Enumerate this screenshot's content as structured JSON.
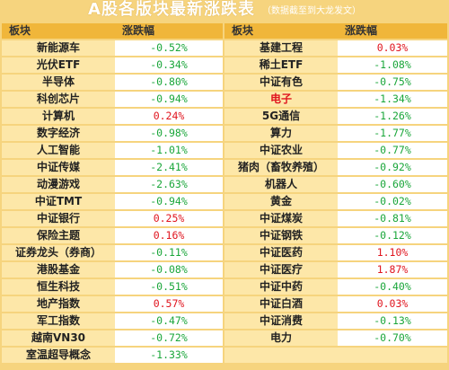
{
  "header": {
    "title": "A股各版块最新涨跌表",
    "subtitle": "（数据截至到大龙发文）"
  },
  "columns": [
    "板块",
    "涨跌幅",
    "板块",
    "涨跌幅"
  ],
  "colors": {
    "up": "#e0141e",
    "down": "#1aa63a",
    "header_bg": "#f0b63a",
    "name_bg": "#fde7a8"
  },
  "rows": [
    {
      "left_name": "新能源车",
      "left_value": "-0.52%",
      "right_name": "基建工程",
      "right_value": "0.03%"
    },
    {
      "left_name": "光伏ETF",
      "left_value": "-0.34%",
      "right_name": "稀土ETF",
      "right_value": "-1.08%"
    },
    {
      "left_name": "半导体",
      "left_value": "-0.80%",
      "right_name": "中证有色",
      "right_value": "-0.75%"
    },
    {
      "left_name": "科创芯片",
      "left_value": "-0.94%",
      "right_name": "电子",
      "right_value": "-1.34%"
    },
    {
      "left_name": "计算机",
      "left_value": "0.24%",
      "right_name": "5G通信",
      "right_value": "-1.26%"
    },
    {
      "left_name": "数字经济",
      "left_value": "-0.98%",
      "right_name": "算力",
      "right_value": "-1.77%"
    },
    {
      "left_name": "人工智能",
      "left_value": "-1.01%",
      "right_name": "中证农业",
      "right_value": "-0.77%"
    },
    {
      "left_name": "中证传媒",
      "left_value": "-2.41%",
      "right_name": "猪肉（畜牧养殖）",
      "right_value": "-0.92%"
    },
    {
      "left_name": "动漫游戏",
      "left_value": "-2.63%",
      "right_name": "机器人",
      "right_value": "-0.60%"
    },
    {
      "left_name": "中证TMT",
      "left_value": "-0.94%",
      "right_name": "黄金",
      "right_value": "-0.02%"
    },
    {
      "left_name": "中证银行",
      "left_value": "0.25%",
      "right_name": "中证煤炭",
      "right_value": "-0.81%"
    },
    {
      "left_name": "保险主题",
      "left_value": "0.16%",
      "right_name": "中证钢铁",
      "right_value": "-0.12%"
    },
    {
      "left_name": "证券龙头（券商）",
      "left_value": "-0.11%",
      "right_name": "中证医药",
      "right_value": "1.10%"
    },
    {
      "left_name": "港股基金",
      "left_value": "-0.08%",
      "right_name": "中证医疗",
      "right_value": "1.87%"
    },
    {
      "left_name": "恒生科技",
      "left_value": "-0.51%",
      "right_name": "中证中药",
      "right_value": "-0.40%"
    },
    {
      "left_name": "地产指数",
      "left_value": "0.57%",
      "right_name": "中证白酒",
      "right_value": "0.03%"
    },
    {
      "left_name": "军工指数",
      "left_value": "-0.47%",
      "right_name": "中证消费",
      "right_value": "-0.13%"
    },
    {
      "left_name": "越南VN30",
      "left_value": "-0.72%",
      "right_name": "电力",
      "right_value": "-0.70%"
    },
    {
      "left_name": "室温超导概念",
      "left_value": "-1.33%",
      "right_name": "",
      "right_value": ""
    }
  ]
}
